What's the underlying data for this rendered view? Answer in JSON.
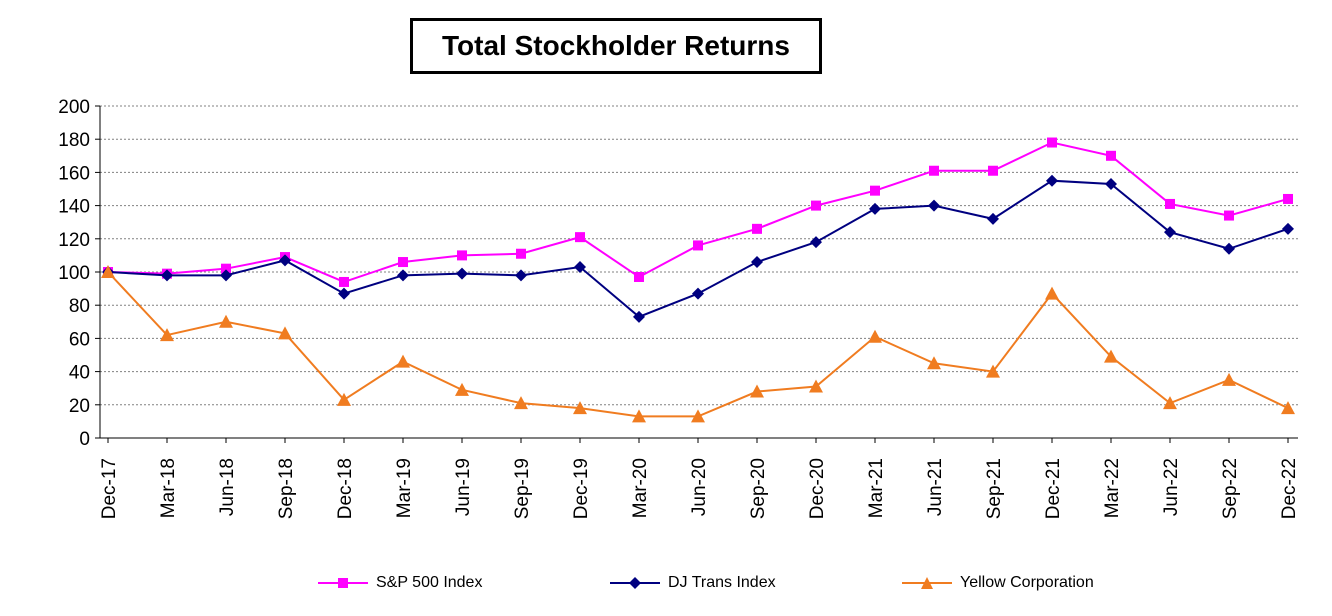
{
  "chart_data": {
    "type": "line",
    "title": "Total Stockholder Returns",
    "xlabel": "",
    "ylabel": "",
    "ylim": [
      0,
      200
    ],
    "yticks": [
      0,
      20,
      40,
      60,
      80,
      100,
      120,
      140,
      160,
      180,
      200
    ],
    "grid": true,
    "legend_position": "bottom",
    "categories": [
      "Dec-17",
      "Mar-18",
      "Jun-18",
      "Sep-18",
      "Dec-18",
      "Mar-19",
      "Jun-19",
      "Sep-19",
      "Dec-19",
      "Mar-20",
      "Jun-20",
      "Sep-20",
      "Dec-20",
      "Mar-21",
      "Jun-21",
      "Sep-21",
      "Dec-21",
      "Mar-22",
      "Jun-22",
      "Sep-22",
      "Dec-22"
    ],
    "series": [
      {
        "name": "S&P 500 Index",
        "color": "#FF00FF",
        "marker": "square",
        "values": [
          100,
          99,
          102,
          109,
          94,
          106,
          110,
          111,
          121,
          97,
          116,
          126,
          140,
          149,
          161,
          161,
          178,
          170,
          141,
          134,
          144
        ]
      },
      {
        "name": "DJ Trans Index",
        "color": "#000080",
        "marker": "diamond",
        "values": [
          100,
          98,
          98,
          107,
          87,
          98,
          99,
          98,
          103,
          73,
          87,
          106,
          118,
          138,
          140,
          132,
          155,
          153,
          124,
          114,
          126
        ]
      },
      {
        "name": "Yellow Corporation",
        "color": "#F07C20",
        "marker": "triangle",
        "values": [
          100,
          62,
          70,
          63,
          23,
          46,
          29,
          21,
          18,
          13,
          13,
          28,
          31,
          61,
          45,
          40,
          87,
          49,
          21,
          35,
          18
        ]
      }
    ]
  }
}
